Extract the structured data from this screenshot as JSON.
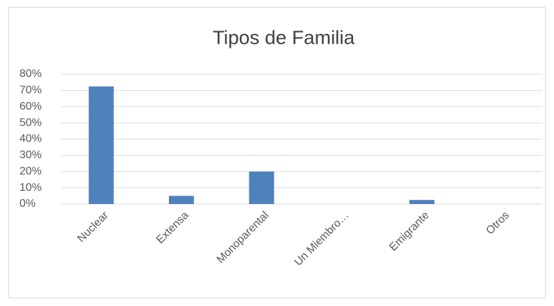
{
  "chart_data": {
    "type": "bar",
    "title": "Tipos de Familia",
    "categories": [
      "Nuclear",
      "Extensa",
      "Monoparental",
      "Un Miembro…",
      "Emigrante",
      "Otros"
    ],
    "values": [
      72.5,
      5,
      20,
      0,
      2.5,
      0
    ],
    "color": "#4f81bd",
    "ylim": [
      0,
      80
    ],
    "yticks": [
      {
        "value": 0,
        "label": "0%"
      },
      {
        "value": 10,
        "label": "10%"
      },
      {
        "value": 20,
        "label": "20%"
      },
      {
        "value": 30,
        "label": "30%"
      },
      {
        "value": 40,
        "label": "40%"
      },
      {
        "value": 50,
        "label": "50%"
      },
      {
        "value": 60,
        "label": "60%"
      },
      {
        "value": 70,
        "label": "70%"
      },
      {
        "value": 80,
        "label": "80%"
      }
    ],
    "grid": true
  }
}
